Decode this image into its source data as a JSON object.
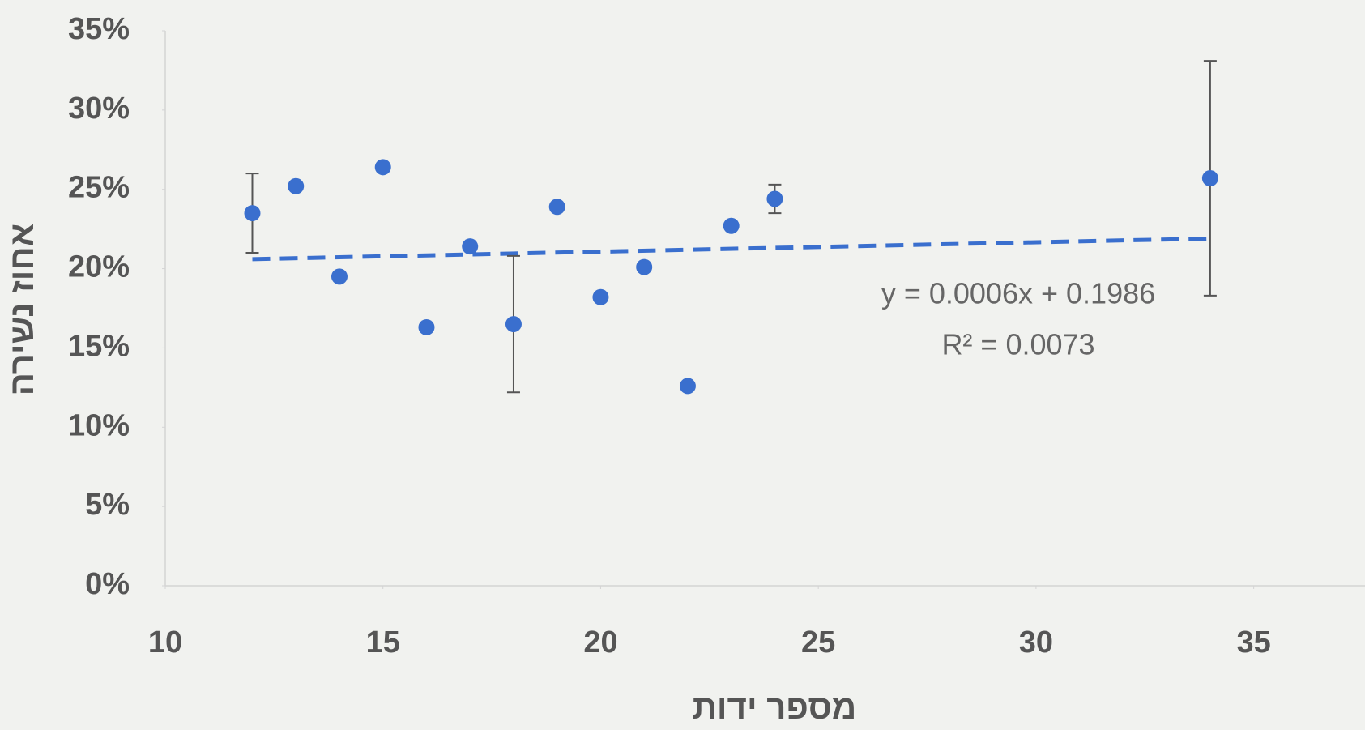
{
  "chart_data": {
    "type": "scatter",
    "x_label": "מספר ידות",
    "y_label": "אחוז נשירה",
    "x": [
      12,
      13,
      14,
      15,
      16,
      17,
      18,
      19,
      20,
      21,
      22,
      23,
      24,
      34
    ],
    "series": [
      {
        "color": "#3a6fce",
        "values": [
          23.5,
          25.2,
          19.5,
          26.4,
          16.3,
          21.4,
          16.5,
          23.9,
          18.2,
          20.1,
          12.6,
          22.7,
          24.4,
          25.7
        ],
        "errors": [
          2.5,
          null,
          null,
          null,
          null,
          null,
          4.3,
          null,
          null,
          null,
          null,
          null,
          0.9,
          7.4
        ]
      }
    ],
    "trendline": {
      "x": [
        12,
        34
      ],
      "values": [
        20.6,
        21.9
      ],
      "color": "#3a6fce",
      "equation": "y = 0.0006x + 0.1986",
      "r2": "R² = 0.0073"
    },
    "xlim": [
      10,
      37.5
    ],
    "xticks": [
      10,
      15,
      20,
      25,
      30,
      35
    ],
    "ylim": [
      0,
      35
    ],
    "yticks": [
      {
        "value": 0,
        "label": "0%"
      },
      {
        "value": 5,
        "label": "5%"
      },
      {
        "value": 10,
        "label": "10%"
      },
      {
        "value": 15,
        "label": "15%"
      },
      {
        "value": 20,
        "label": "20%"
      },
      {
        "value": 25,
        "label": "25%"
      },
      {
        "value": 30,
        "label": "30%"
      },
      {
        "value": 35,
        "label": "35%"
      }
    ]
  }
}
